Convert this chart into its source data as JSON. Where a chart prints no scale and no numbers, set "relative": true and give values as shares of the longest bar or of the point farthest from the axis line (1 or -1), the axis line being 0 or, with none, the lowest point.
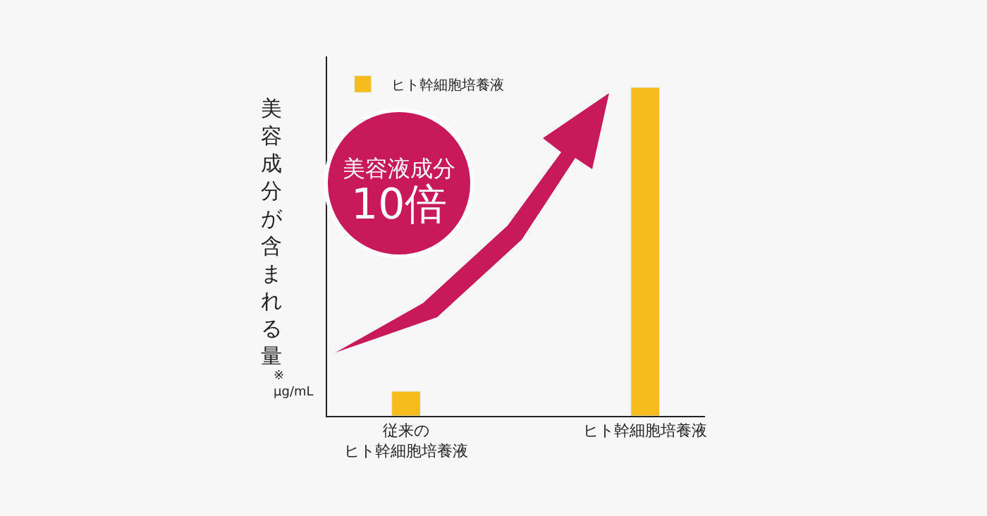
{
  "chart_data": {
    "type": "bar",
    "relative": true,
    "ylabel": "美容成分が含まれる量",
    "categories": [
      "従来のヒト幹細胞培養液",
      "ヒト幹細胞培養液"
    ],
    "series": [
      {
        "name": "ヒト幹細胞培養液",
        "color": "#f5bc1c",
        "values": [
          0.075,
          1
        ]
      }
    ],
    "legend": "top left",
    "grid": false,
    "annotations": [
      "美容液成分",
      "10倍",
      "※\nμg/mL"
    ]
  }
}
